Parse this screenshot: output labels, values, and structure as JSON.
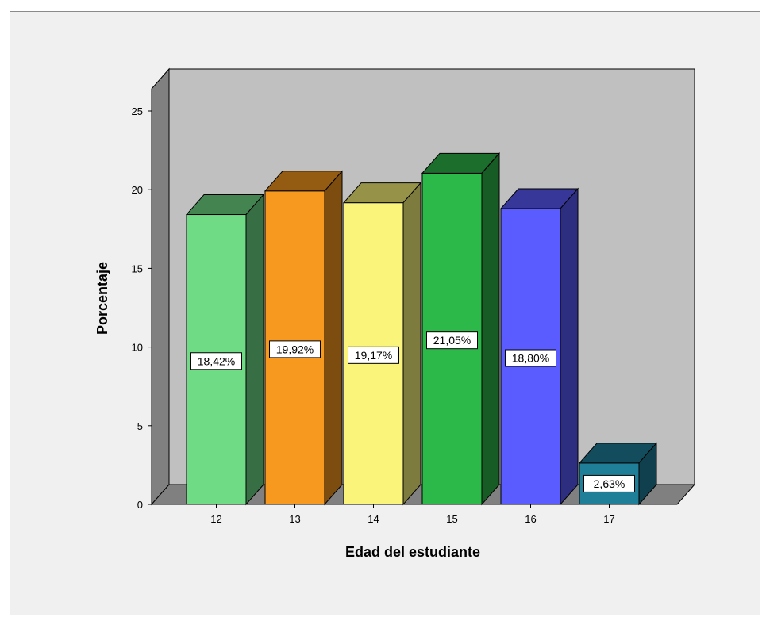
{
  "chart_data": {
    "type": "bar",
    "style": "3d",
    "categories": [
      "12",
      "13",
      "14",
      "15",
      "16",
      "17"
    ],
    "values": [
      18.42,
      19.92,
      19.17,
      21.05,
      18.8,
      2.63
    ],
    "labels": [
      "18,42%",
      "19,92%",
      "19,17%",
      "21,05%",
      "18,80%",
      "2,63%"
    ],
    "colors": [
      "#6fdc85",
      "#f7991e",
      "#faf57a",
      "#2db84a",
      "#5b5cff",
      "#1f7f99"
    ],
    "xlabel": "Edad del estudiante",
    "ylabel": "Porcentaje",
    "ylim": [
      0,
      25
    ],
    "yticks": [
      "0",
      "5",
      "10",
      "15",
      "20",
      "25"
    ],
    "grid": false,
    "legend": "none"
  }
}
